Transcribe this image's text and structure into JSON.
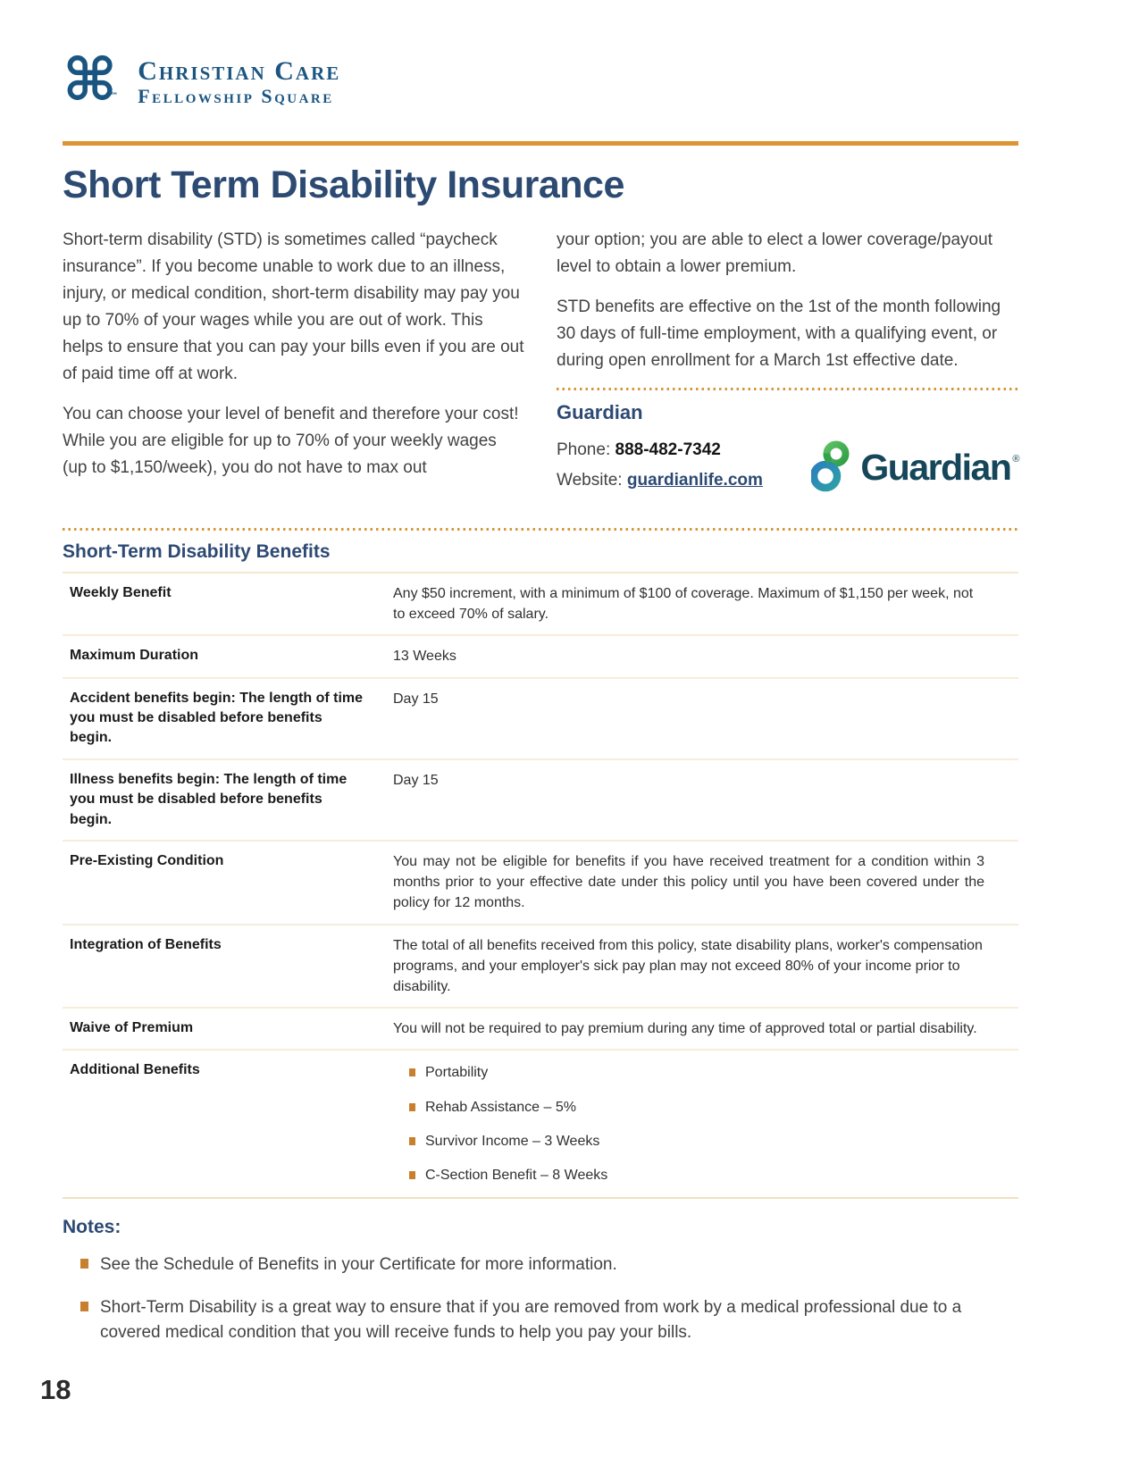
{
  "colors": {
    "accent_orange": "#dd9434",
    "navy_heading": "#2d4a74",
    "brand_navy": "#1a5581",
    "guardian_teal": "#16465a",
    "guardian_green": "#3aad49",
    "guardian_blue": "#2b80bf",
    "bullet_orange": "#c8802f",
    "row_divider_tan": "#f5e8cf",
    "body_text": "#424242"
  },
  "header": {
    "org_name_line1": "Christian Care",
    "org_name_line2": "Fellowship Square",
    "trademark": "™"
  },
  "page": {
    "title": "Short Term Disability Insurance",
    "page_number": "18"
  },
  "intro": {
    "left_paragraphs": [
      "Short-term disability (STD) is sometimes called “paycheck insurance”. If you become unable to work due to an illness, injury, or medical condition, short-term disability may pay you up to 70% of your wages while you are out of work. This helps to ensure that you can pay your bills even if you are out of paid time off at work.",
      "You can choose your level of benefit and therefore your cost! While you are eligible for up to 70% of your weekly wages (up to $1,150/week), you do not have to max out"
    ],
    "right_paragraphs": [
      "your option; you are able to elect a lower coverage/payout level to obtain a lower premium.",
      "STD benefits are effective on the 1st of the month following 30 days of full-time employment, with a qualifying event, or during open enrollment for a March 1st effective date."
    ]
  },
  "provider": {
    "name": "Guardian",
    "phone_label": "Phone:",
    "phone_number": "888-482-7342",
    "website_label": "Website:",
    "website": "guardianlife.com",
    "logo_wordmark": "Guardian",
    "logo_trademark": "®"
  },
  "benefits": {
    "heading": "Short-Term Disability Benefits",
    "rows": [
      {
        "label": "Weekly Benefit",
        "value": "Any $50 increment, with a minimum of $100 of coverage. Maximum of $1,150 per week, not to exceed 70% of salary."
      },
      {
        "label": "Maximum Duration",
        "value": "13 Weeks"
      },
      {
        "label": "Accident benefits begin: The length of time you must be disabled before benefits begin.",
        "value": "Day 15"
      },
      {
        "label": "Illness benefits begin: The length of time you must be disabled before benefits begin.",
        "value": "Day 15"
      },
      {
        "label": "Pre-Existing Condition",
        "value": "You may not be eligible for benefits if you have received treatment for a condition within 3 months prior to your effective date under this policy until you have been covered under the policy for 12 months."
      },
      {
        "label": "Integration of Benefits",
        "value": "The total of all benefits received from this policy, state disability plans, worker's compensation programs, and your employer's sick pay plan may not exceed 80% of your income prior to disability."
      },
      {
        "label": "Waive of Premium",
        "value": "You will not be required to pay premium during any time of approved total or partial disability."
      },
      {
        "label": "Additional Benefits",
        "bullets": [
          "Portability",
          "Rehab Assistance – 5%",
          "Survivor Income – 3 Weeks",
          "C-Section Benefit – 8 Weeks"
        ]
      }
    ]
  },
  "notes": {
    "heading": "Notes:",
    "items": [
      "See the Schedule of Benefits in your Certificate for more information.",
      "Short-Term Disability is a great way to ensure that if you are removed from work by a medical professional due to a covered medical condition that you will receive funds to help you pay your bills."
    ]
  }
}
